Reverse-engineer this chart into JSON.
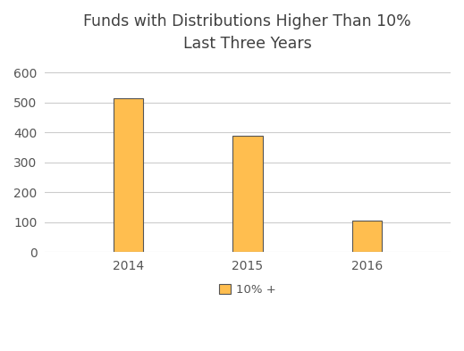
{
  "title_line1": "Funds with Distributions Higher Than 10%",
  "title_line2": "Last Three Years",
  "categories": [
    "2014",
    "2015",
    "2016"
  ],
  "values": [
    515,
    390,
    105
  ],
  "bar_color": "#FFBE4F",
  "bar_edgecolor": "#555555",
  "bar_width": 0.25,
  "ylim": [
    0,
    640
  ],
  "yticks": [
    0,
    100,
    200,
    300,
    400,
    500,
    600
  ],
  "legend_label": "10% +",
  "legend_marker_color": "#FFBE4F",
  "legend_marker_edgecolor": "#555555",
  "title_color": "#404040",
  "tick_color": "#555555",
  "grid_color": "#cccccc",
  "background_color": "#ffffff",
  "title_fontsize": 12.5,
  "tick_fontsize": 10,
  "legend_fontsize": 9.5
}
